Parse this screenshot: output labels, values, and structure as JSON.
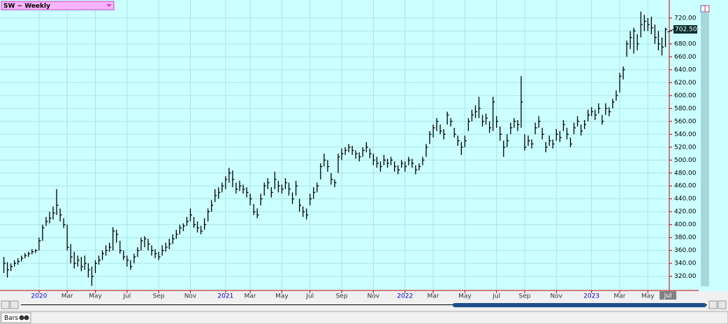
{
  "chart_data": {
    "type": "hlc",
    "title": "SW ~ Weekly",
    "color": "#000000",
    "grid": true,
    "ylim": [
      298,
      748
    ],
    "yticks": [
      {
        "value": 320,
        "label": "320.00"
      },
      {
        "value": 340,
        "label": "340.00"
      },
      {
        "value": 360,
        "label": "360.00"
      },
      {
        "value": 380,
        "label": "380.00"
      },
      {
        "value": 400,
        "label": "400.00"
      },
      {
        "value": 420,
        "label": "420.00"
      },
      {
        "value": 440,
        "label": "440.00"
      },
      {
        "value": 460,
        "label": "460.00"
      },
      {
        "value": 480,
        "label": "480.00"
      },
      {
        "value": 500,
        "label": "500.00"
      },
      {
        "value": 520,
        "label": "520.00"
      },
      {
        "value": 540,
        "label": "540.00"
      },
      {
        "value": 560,
        "label": "560.00"
      },
      {
        "value": 580,
        "label": "580.00"
      },
      {
        "value": 600,
        "label": "600.00"
      },
      {
        "value": 620,
        "label": "620.00"
      },
      {
        "value": 640,
        "label": "640.00"
      },
      {
        "value": 660,
        "label": "660.00"
      },
      {
        "value": 680,
        "label": "680.00"
      },
      {
        "value": 700,
        "label": "700.00"
      },
      {
        "value": 720,
        "label": "720.00"
      }
    ],
    "last_price_label": "702.50",
    "end_label": "Jul",
    "footer_tab": "Bars",
    "categories": [
      null,
      null,
      null,
      null,
      null,
      null,
      null,
      null,
      null,
      null,
      "2020",
      null,
      null,
      null,
      null,
      null,
      null,
      null,
      "Mar",
      null,
      null,
      null,
      null,
      null,
      null,
      null,
      "May",
      null,
      null,
      null,
      null,
      null,
      null,
      null,
      null,
      "Jul",
      null,
      null,
      null,
      null,
      null,
      null,
      null,
      null,
      "Sep",
      null,
      null,
      null,
      null,
      null,
      null,
      null,
      null,
      "Nov",
      null,
      null,
      null,
      null,
      null,
      null,
      null,
      null,
      null,
      "2021",
      null,
      null,
      null,
      null,
      null,
      null,
      "Mar",
      null,
      null,
      null,
      null,
      null,
      null,
      null,
      null,
      "May",
      null,
      null,
      null,
      null,
      null,
      null,
      null,
      "Jul",
      null,
      null,
      null,
      null,
      null,
      null,
      null,
      null,
      "Sep",
      null,
      null,
      null,
      null,
      null,
      null,
      null,
      null,
      "Nov",
      null,
      null,
      null,
      null,
      null,
      null,
      null,
      null,
      "2022",
      null,
      null,
      null,
      null,
      null,
      null,
      null,
      "Mar",
      null,
      null,
      null,
      null,
      null,
      null,
      null,
      null,
      "May",
      null,
      null,
      null,
      null,
      null,
      null,
      null,
      null,
      "Jul",
      null,
      null,
      null,
      null,
      null,
      null,
      null,
      "Sep",
      null,
      null,
      null,
      null,
      null,
      null,
      null,
      null,
      "Nov",
      null,
      null,
      null,
      null,
      null,
      null,
      null,
      null,
      null,
      "2023",
      null,
      null,
      null,
      null,
      null,
      null,
      null,
      "Mar",
      null,
      null,
      null,
      null,
      null,
      null,
      null,
      "May",
      null,
      null,
      null,
      null,
      null
    ],
    "high": [
      350,
      342,
      340,
      345,
      348,
      352,
      356,
      358,
      362,
      362,
      380,
      400,
      412,
      420,
      428,
      455,
      425,
      410,
      400,
      370,
      358,
      352,
      350,
      352,
      340,
      335,
      345,
      352,
      360,
      368,
      372,
      396,
      392,
      375,
      360,
      352,
      345,
      355,
      365,
      380,
      382,
      378,
      368,
      362,
      358,
      368,
      372,
      378,
      385,
      392,
      400,
      402,
      412,
      425,
      412,
      405,
      398,
      410,
      425,
      438,
      455,
      458,
      465,
      475,
      488,
      484,
      465,
      468,
      462,
      458,
      448,
      432,
      425,
      448,
      465,
      472,
      458,
      482,
      468,
      462,
      472,
      465,
      450,
      468,
      440,
      428,
      425,
      448,
      458,
      465,
      495,
      510,
      500,
      480,
      470,
      510,
      518,
      520,
      525,
      522,
      515,
      512,
      520,
      528,
      518,
      510,
      505,
      498,
      508,
      502,
      505,
      498,
      492,
      500,
      498,
      505,
      502,
      492,
      495,
      505,
      525,
      545,
      555,
      565,
      555,
      548,
      575,
      565,
      550,
      538,
      528,
      538,
      565,
      578,
      585,
      598,
      570,
      572,
      560,
      598,
      568,
      552,
      530,
      540,
      558,
      565,
      562,
      630,
      540,
      538,
      532,
      558,
      568,
      550,
      528,
      538,
      532,
      548,
      545,
      562,
      550,
      535,
      558,
      568,
      555,
      562,
      578,
      582,
      578,
      588,
      570,
      588,
      582,
      595,
      608,
      635,
      645,
      685,
      700,
      705,
      695,
      730,
      725,
      720,
      722,
      710,
      700,
      690,
      705
    ],
    "low": [
      325,
      318,
      328,
      335,
      338,
      343,
      348,
      350,
      354,
      356,
      360,
      375,
      398,
      402,
      408,
      415,
      405,
      395,
      360,
      340,
      332,
      335,
      328,
      330,
      318,
      305,
      325,
      338,
      345,
      352,
      358,
      360,
      372,
      355,
      345,
      335,
      330,
      340,
      350,
      360,
      365,
      360,
      352,
      348,
      345,
      352,
      358,
      362,
      370,
      378,
      385,
      390,
      398,
      405,
      395,
      388,
      385,
      392,
      405,
      420,
      435,
      440,
      450,
      455,
      465,
      458,
      448,
      452,
      448,
      442,
      430,
      415,
      410,
      430,
      445,
      455,
      442,
      455,
      450,
      448,
      455,
      445,
      432,
      445,
      420,
      412,
      408,
      430,
      440,
      450,
      470,
      490,
      482,
      462,
      458,
      480,
      500,
      508,
      512,
      508,
      502,
      498,
      505,
      512,
      503,
      492,
      488,
      482,
      492,
      488,
      492,
      482,
      478,
      488,
      482,
      492,
      488,
      478,
      484,
      492,
      505,
      525,
      535,
      545,
      540,
      532,
      555,
      552,
      535,
      522,
      508,
      520,
      545,
      560,
      565,
      565,
      552,
      555,
      542,
      545,
      550,
      530,
      505,
      520,
      540,
      550,
      545,
      550,
      515,
      522,
      518,
      540,
      550,
      532,
      512,
      522,
      518,
      530,
      528,
      545,
      532,
      520,
      540,
      552,
      538,
      548,
      560,
      568,
      562,
      572,
      555,
      570,
      568,
      580,
      592,
      605,
      625,
      660,
      672,
      665,
      670,
      690,
      700,
      700,
      695,
      680,
      670,
      662,
      675
    ],
    "close": [
      340,
      330,
      335,
      340,
      343,
      348,
      352,
      355,
      358,
      360,
      375,
      395,
      405,
      410,
      418,
      430,
      415,
      400,
      365,
      350,
      340,
      345,
      335,
      340,
      330,
      320,
      340,
      345,
      355,
      360,
      365,
      390,
      385,
      360,
      350,
      345,
      335,
      350,
      360,
      375,
      378,
      370,
      360,
      355,
      350,
      360,
      365,
      370,
      378,
      385,
      395,
      398,
      405,
      415,
      400,
      395,
      390,
      400,
      420,
      430,
      445,
      450,
      460,
      470,
      480,
      470,
      455,
      460,
      455,
      450,
      440,
      420,
      415,
      440,
      460,
      465,
      450,
      470,
      460,
      455,
      465,
      455,
      440,
      460,
      430,
      420,
      415,
      440,
      450,
      460,
      490,
      500,
      490,
      470,
      465,
      505,
      510,
      515,
      520,
      515,
      510,
      505,
      515,
      520,
      510,
      500,
      495,
      490,
      500,
      495,
      500,
      490,
      485,
      495,
      490,
      500,
      495,
      485,
      490,
      500,
      520,
      540,
      550,
      560,
      545,
      540,
      570,
      560,
      540,
      530,
      520,
      530,
      560,
      570,
      575,
      580,
      560,
      565,
      550,
      590,
      560,
      540,
      520,
      530,
      550,
      560,
      555,
      590,
      520,
      530,
      525,
      550,
      560,
      540,
      520,
      530,
      525,
      540,
      535,
      555,
      540,
      525,
      550,
      560,
      545,
      555,
      570,
      575,
      570,
      580,
      560,
      580,
      575,
      590,
      600,
      630,
      640,
      680,
      690,
      700,
      680,
      710,
      715,
      710,
      705,
      690,
      680,
      675,
      702.5
    ]
  }
}
